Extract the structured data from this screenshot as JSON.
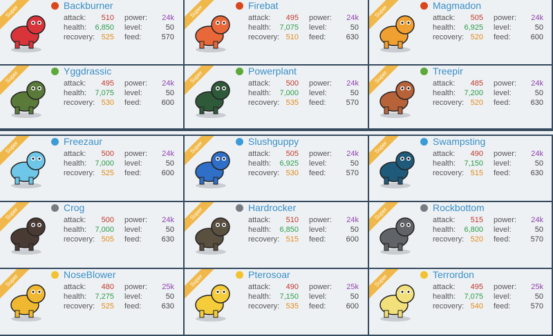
{
  "badge": "Super",
  "stat_labels": [
    "attack:",
    "health:",
    "recovery:",
    "power:",
    "level:",
    "feed:"
  ],
  "cards": [
    {
      "name": "Backburner",
      "stats": [
        510,
        "6,850",
        525,
        "24k",
        50,
        570
      ],
      "icon_color": "#d9481c",
      "body_color": "#d8343a"
    },
    {
      "name": "Firebat",
      "stats": [
        495,
        "7,075",
        510,
        "24k",
        50,
        630
      ],
      "icon_color": "#d9481c",
      "body_color": "#e8683a"
    },
    {
      "name": "Magmadon",
      "stats": [
        505,
        "6,925",
        520,
        "24k",
        50,
        600
      ],
      "icon_color": "#d9481c",
      "body_color": "#f0a030"
    },
    {
      "name": "Yggdrassic",
      "stats": [
        495,
        "7,075",
        530,
        "24k",
        50,
        600
      ],
      "icon_color": "#5da83a",
      "body_color": "#5a7a3a"
    },
    {
      "name": "Powerplant",
      "stats": [
        500,
        "7,000",
        535,
        "24k",
        50,
        570
      ],
      "icon_color": "#5da83a",
      "body_color": "#2f5a3a"
    },
    {
      "name": "Treepir",
      "stats": [
        485,
        "7,200",
        520,
        "24k",
        50,
        630
      ],
      "icon_color": "#5da83a",
      "body_color": "#b8623a"
    },
    {
      "name": "Freezaur",
      "stats": [
        500,
        "7,000",
        525,
        "24k",
        50,
        600
      ],
      "icon_color": "#3a9bd6",
      "body_color": "#6ec6e8"
    },
    {
      "name": "Slushguppy",
      "stats": [
        505,
        "6,925",
        530,
        "24k",
        50,
        570
      ],
      "icon_color": "#3a9bd6",
      "body_color": "#2f6fc8"
    },
    {
      "name": "Swampsting",
      "stats": [
        490,
        "7,150",
        515,
        "24k",
        50,
        630
      ],
      "icon_color": "#3a9bd6",
      "body_color": "#1f5a7a"
    },
    {
      "name": "Crog",
      "stats": [
        500,
        "7,000",
        505,
        "24k",
        50,
        630
      ],
      "icon_color": "#777c84",
      "body_color": "#4a3a34"
    },
    {
      "name": "Hardrocker",
      "stats": [
        510,
        "6,850",
        515,
        "24k",
        50,
        600
      ],
      "icon_color": "#777c84",
      "body_color": "#5a5040"
    },
    {
      "name": "Rockbottom",
      "stats": [
        515,
        "6,800",
        520,
        "24k",
        50,
        570
      ],
      "icon_color": "#777c84",
      "body_color": "#606468"
    },
    {
      "name": "NoseBlower",
      "stats": [
        480,
        "7,275",
        525,
        "25k",
        50,
        630
      ],
      "icon_color": "#f2c230",
      "body_color": "#f0b830"
    },
    {
      "name": "Pterosoar",
      "stats": [
        490,
        "7,150",
        535,
        "25k",
        50,
        600
      ],
      "icon_color": "#f2c230",
      "body_color": "#f5cc3a"
    },
    {
      "name": "Terrordon",
      "stats": [
        495,
        "7,075",
        540,
        "25k",
        50,
        570
      ],
      "icon_color": "#f2c230",
      "body_color": "#f2e07a"
    }
  ]
}
